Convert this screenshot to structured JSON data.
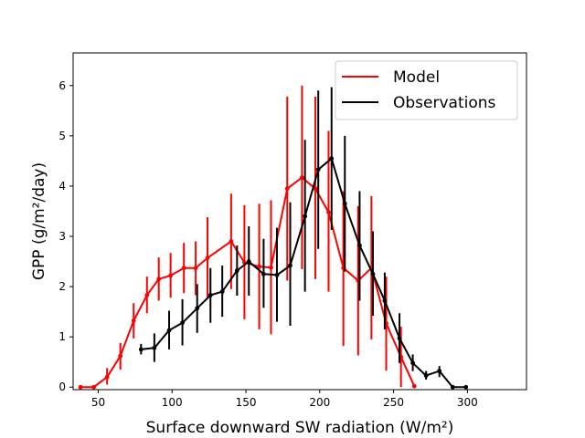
{
  "chart_data": {
    "type": "line",
    "xlabel": "Surface downward SW radiation (W/m²)",
    "ylabel": "GPP (g/m²/day)",
    "xlim": [
      33,
      340
    ],
    "ylim": [
      -0.05,
      6.65
    ],
    "xticks": [
      50,
      100,
      150,
      200,
      250,
      300
    ],
    "yticks": [
      0,
      1,
      2,
      3,
      4,
      5,
      6
    ],
    "grid": false,
    "legend_position": "top-right",
    "series": [
      {
        "name": "Model",
        "color": "#ff0000",
        "points": [
          {
            "x": 38,
            "y": 0.0,
            "lo": 0.0,
            "hi": 0.0
          },
          {
            "x": 47,
            "y": 0.0,
            "lo": 0.0,
            "hi": 0.0
          },
          {
            "x": 56,
            "y": 0.2,
            "lo": 0.05,
            "hi": 0.38
          },
          {
            "x": 65,
            "y": 0.62,
            "lo": 0.35,
            "hi": 0.88
          },
          {
            "x": 74,
            "y": 1.32,
            "lo": 0.97,
            "hi": 1.67
          },
          {
            "x": 83,
            "y": 1.83,
            "lo": 1.47,
            "hi": 2.2
          },
          {
            "x": 91,
            "y": 2.15,
            "lo": 1.72,
            "hi": 2.58
          },
          {
            "x": 99,
            "y": 2.22,
            "lo": 1.78,
            "hi": 2.67
          },
          {
            "x": 108,
            "y": 2.37,
            "lo": 1.87,
            "hi": 2.87
          },
          {
            "x": 116,
            "y": 2.37,
            "lo": 1.83,
            "hi": 2.9
          },
          {
            "x": 124,
            "y": 2.57,
            "lo": 1.78,
            "hi": 3.38
          },
          {
            "x": 140,
            "y": 2.9,
            "lo": 1.95,
            "hi": 3.85
          },
          {
            "x": 149,
            "y": 2.48,
            "lo": 1.35,
            "hi": 3.62
          },
          {
            "x": 159,
            "y": 2.4,
            "lo": 1.15,
            "hi": 3.65
          },
          {
            "x": 167,
            "y": 2.38,
            "lo": 1.05,
            "hi": 3.72
          },
          {
            "x": 178,
            "y": 3.95,
            "lo": 2.12,
            "hi": 5.78
          },
          {
            "x": 188,
            "y": 4.17,
            "lo": 2.35,
            "hi": 6.0
          },
          {
            "x": 197,
            "y": 3.95,
            "lo": 2.15,
            "hi": 5.78
          },
          {
            "x": 206,
            "y": 3.48,
            "lo": 1.9,
            "hi": 5.1
          },
          {
            "x": 216,
            "y": 2.37,
            "lo": 0.82,
            "hi": 3.9
          },
          {
            "x": 226,
            "y": 2.12,
            "lo": 0.63,
            "hi": 3.6
          },
          {
            "x": 235,
            "y": 2.37,
            "lo": 0.95,
            "hi": 3.8
          },
          {
            "x": 245,
            "y": 1.27,
            "lo": 0.33,
            "hi": 2.2
          },
          {
            "x": 255,
            "y": 0.6,
            "lo": 0.0,
            "hi": 1.2
          },
          {
            "x": 264,
            "y": 0.02,
            "lo": 0.0,
            "hi": 0.0
          }
        ]
      },
      {
        "name": "Observations",
        "color": "#000000",
        "points": [
          {
            "x": 79,
            "y": 0.75,
            "lo": 0.65,
            "hi": 0.86
          },
          {
            "x": 88,
            "y": 0.78,
            "lo": 0.5,
            "hi": 1.07
          },
          {
            "x": 98,
            "y": 1.13,
            "lo": 0.75,
            "hi": 1.52
          },
          {
            "x": 107,
            "y": 1.28,
            "lo": 0.83,
            "hi": 1.75
          },
          {
            "x": 117,
            "y": 1.57,
            "lo": 1.08,
            "hi": 2.05
          },
          {
            "x": 126,
            "y": 1.83,
            "lo": 1.28,
            "hi": 2.37
          },
          {
            "x": 134,
            "y": 1.9,
            "lo": 1.4,
            "hi": 2.42
          },
          {
            "x": 144,
            "y": 2.32,
            "lo": 1.82,
            "hi": 2.82
          },
          {
            "x": 152,
            "y": 2.5,
            "lo": 1.82,
            "hi": 3.2
          },
          {
            "x": 162,
            "y": 2.25,
            "lo": 1.58,
            "hi": 2.95
          },
          {
            "x": 171,
            "y": 2.23,
            "lo": 1.3,
            "hi": 3.17
          },
          {
            "x": 180,
            "y": 2.42,
            "lo": 1.22,
            "hi": 3.68
          },
          {
            "x": 190,
            "y": 3.4,
            "lo": 1.9,
            "hi": 4.92
          },
          {
            "x": 199,
            "y": 4.33,
            "lo": 2.75,
            "hi": 5.9
          },
          {
            "x": 208,
            "y": 4.55,
            "lo": 3.13,
            "hi": 5.97
          },
          {
            "x": 217,
            "y": 3.65,
            "lo": 2.3,
            "hi": 5.0
          },
          {
            "x": 227,
            "y": 2.82,
            "lo": 1.72,
            "hi": 3.9
          },
          {
            "x": 236,
            "y": 2.25,
            "lo": 1.42,
            "hi": 3.1
          },
          {
            "x": 244,
            "y": 1.72,
            "lo": 1.15,
            "hi": 2.28
          },
          {
            "x": 254,
            "y": 0.97,
            "lo": 0.48,
            "hi": 1.47
          },
          {
            "x": 263,
            "y": 0.48,
            "lo": 0.32,
            "hi": 0.65
          },
          {
            "x": 272,
            "y": 0.23,
            "lo": 0.15,
            "hi": 0.32
          },
          {
            "x": 281,
            "y": 0.32,
            "lo": 0.2,
            "hi": 0.42
          },
          {
            "x": 290,
            "y": 0.0,
            "lo": 0.0,
            "hi": 0.0
          },
          {
            "x": 299,
            "y": 0.0,
            "lo": 0.0,
            "hi": 0.0
          }
        ]
      }
    ]
  }
}
